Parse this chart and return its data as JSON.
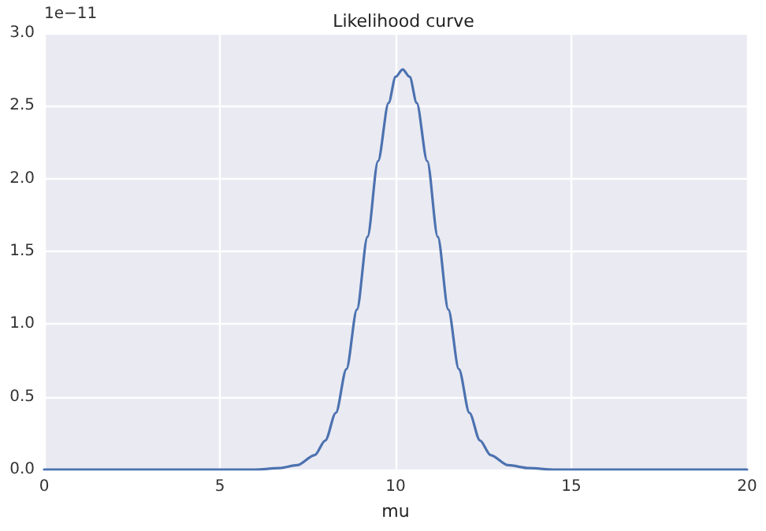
{
  "chart_data": {
    "type": "line",
    "title": "Likelihood curve",
    "xlabel": "mu",
    "annotations": [
      "1e−11"
    ],
    "x": [
      0,
      5,
      6,
      6.7,
      7.2,
      7.7,
      8.0,
      8.3,
      8.6,
      8.9,
      9.2,
      9.5,
      9.8,
      10.0,
      10.2,
      10.4,
      10.6,
      10.9,
      11.2,
      11.5,
      11.8,
      12.1,
      12.4,
      12.7,
      13.2,
      13.8,
      14.5,
      20
    ],
    "series": [
      {
        "color": "#4c72b0",
        "values": [
          0,
          0,
          0,
          0.01,
          0.03,
          0.1,
          0.2,
          0.39,
          0.69,
          1.1,
          1.6,
          2.12,
          2.52,
          2.7,
          2.75,
          2.7,
          2.52,
          2.12,
          1.6,
          1.1,
          0.69,
          0.39,
          0.2,
          0.1,
          0.03,
          0.01,
          0,
          0
        ]
      }
    ],
    "xlim": [
      0,
      20
    ],
    "xticks": [
      0,
      5,
      10,
      15,
      20
    ],
    "ylim": [
      0,
      3
    ],
    "yticks": [
      {
        "value": 0,
        "label": "0.0"
      },
      0.5,
      {
        "value": 1,
        "label": "1.0"
      },
      1.5,
      {
        "value": 2,
        "label": "2.0"
      },
      2.5,
      {
        "value": 3,
        "label": "3.0"
      }
    ],
    "grid": true,
    "marker": "none",
    "line_style": "solid"
  }
}
